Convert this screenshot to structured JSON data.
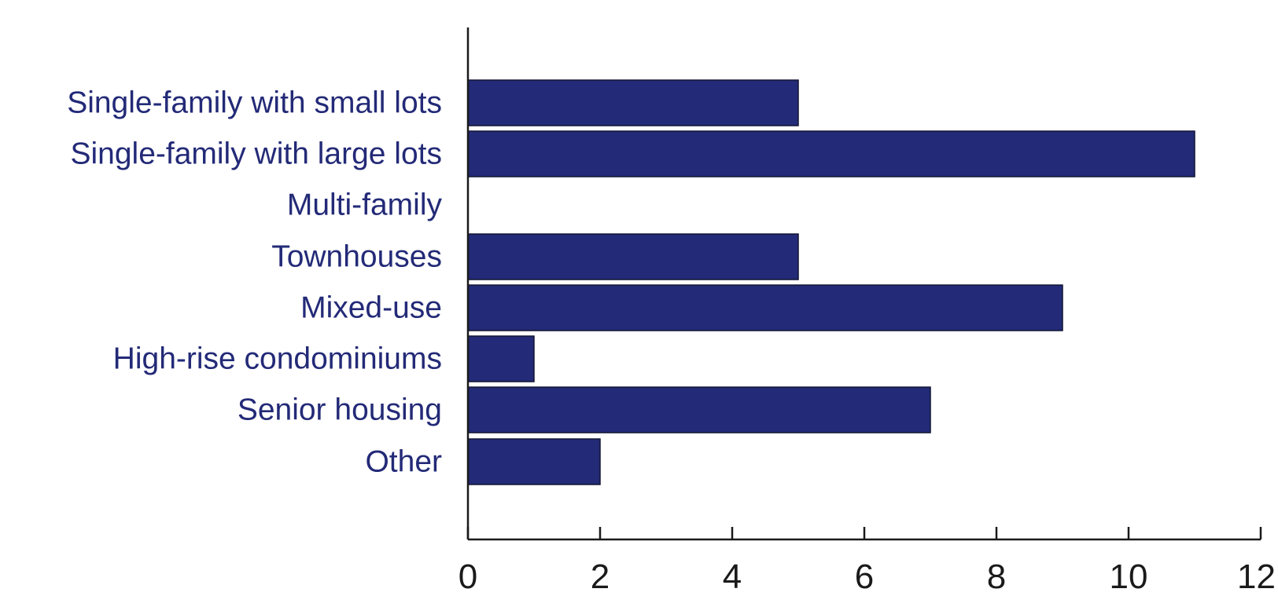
{
  "chart_data": {
    "type": "bar",
    "orientation": "horizontal",
    "title": "",
    "xlabel": "",
    "ylabel": "",
    "categories": [
      "Single-family with small lots",
      "Single-family with large lots",
      "Multi-family",
      "Townhouses",
      "Mixed-use",
      "High-rise condominiums",
      "Senior housing",
      "Other"
    ],
    "values": [
      5,
      11,
      0,
      5,
      9,
      1,
      7,
      2
    ],
    "xlim": [
      0,
      12
    ],
    "xticks": [
      "0",
      "2",
      "4",
      "6",
      "8",
      "10",
      "12"
    ],
    "grid": false,
    "legend": "none",
    "colors": {
      "bar": "#232a77",
      "label": "#232a77",
      "axis": "#1a1a1a",
      "tick_label": "#1a1a1a"
    }
  }
}
